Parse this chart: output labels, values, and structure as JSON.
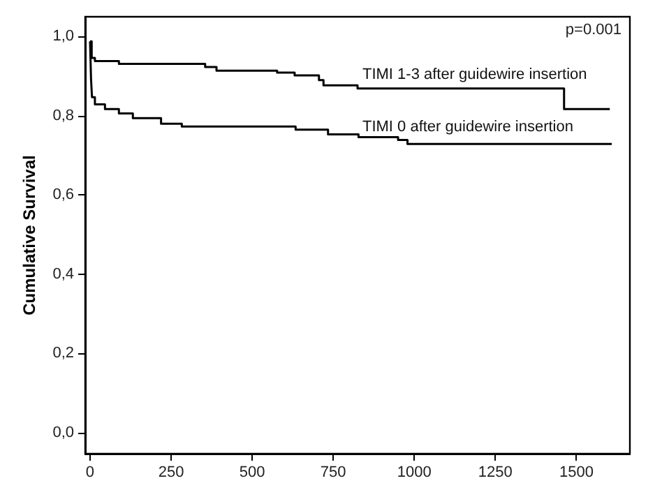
{
  "chart_data": {
    "type": "step",
    "xlim": [
      -15,
      1665
    ],
    "xticks": [
      0,
      250,
      500,
      750,
      1000,
      1250,
      1500
    ],
    "ylim": [
      -0.053,
      1.05
    ],
    "yticks": [
      {
        "value": 0,
        "label": "0,0"
      },
      {
        "value": 0.2,
        "label": "0,2"
      },
      {
        "value": 0.4,
        "label": "0,4"
      },
      {
        "value": 0.6,
        "label": "0,6"
      },
      {
        "value": 0.8,
        "label": "0,8"
      },
      {
        "value": 1,
        "label": "1,0"
      }
    ],
    "ylabel": "Cumulative Survival",
    "grid": false,
    "marker": "none",
    "line_style": "solid",
    "series": [
      {
        "color": "#000000",
        "x": [
          0,
          5,
          15,
          89,
          355,
          390,
          577,
          631,
          706,
          720,
          825,
          1462,
          1603
        ],
        "values": [
          0.988,
          0.946,
          0.938,
          0.931,
          0.923,
          0.914,
          0.909,
          0.902,
          0.89,
          0.877,
          0.869,
          0.817,
          0.817
        ]
      },
      {
        "color": "#000000",
        "x": [
          0,
          3,
          6,
          15,
          46,
          89,
          132,
          219,
          283,
          634,
          734,
          828,
          950,
          979,
          1609
        ],
        "values": [
          0.988,
          0.893,
          0.847,
          0.829,
          0.817,
          0.806,
          0.794,
          0.78,
          0.773,
          0.765,
          0.753,
          0.746,
          0.739,
          0.729,
          0.729
        ]
      }
    ],
    "annotations": [
      "p=0.001",
      {
        "text": "TIMI 1-3 after guidewire insertion",
        "x": 840,
        "y": 0.885
      },
      {
        "text": "TIMI 0 after guidewire insertion",
        "x": 840,
        "y": 0.752
      }
    ]
  }
}
